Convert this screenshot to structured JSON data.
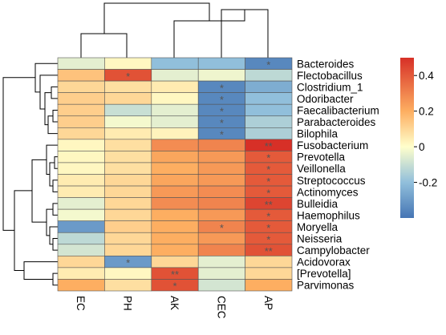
{
  "chart_data": {
    "type": "heatmap",
    "title": "",
    "columns": [
      "EC",
      "PH",
      "AK",
      "CEC",
      "AP"
    ],
    "rows": [
      "Bacteroides",
      "Flectobacillus",
      "Clostridium_1",
      "Odoribacter",
      "Faecalibacterium",
      "Parabacteroides",
      "Bilophila",
      "Fusobacterium",
      "Prevotella",
      "Veillonella",
      "Streptococcus",
      "Actinomyces",
      "Bulleidia",
      "Haemophilus",
      "Moryella",
      "Neisseria",
      "Campylobacter",
      "Acidovorax",
      "[Prevotella]",
      "Parvimonas"
    ],
    "values": [
      [
        -0.05,
        0.02,
        -0.2,
        -0.2,
        -0.35
      ],
      [
        0.15,
        0.42,
        -0.05,
        -0.03,
        -0.12
      ],
      [
        0.1,
        0.08,
        0.05,
        -0.35,
        -0.25
      ],
      [
        0.12,
        0.1,
        0.02,
        -0.35,
        -0.2
      ],
      [
        0.12,
        -0.1,
        -0.05,
        -0.35,
        -0.2
      ],
      [
        0.12,
        -0.02,
        -0.05,
        -0.35,
        -0.15
      ],
      [
        0.1,
        0.05,
        0.03,
        -0.35,
        -0.15
      ],
      [
        0.02,
        0.08,
        0.28,
        0.3,
        0.52
      ],
      [
        0.02,
        0.08,
        0.22,
        0.25,
        0.4
      ],
      [
        0.02,
        0.08,
        0.2,
        0.25,
        0.4
      ],
      [
        0.05,
        0.1,
        0.22,
        0.25,
        0.4
      ],
      [
        0.05,
        0.1,
        0.25,
        0.28,
        0.4
      ],
      [
        -0.05,
        0.1,
        0.28,
        0.3,
        0.45
      ],
      [
        -0.02,
        0.1,
        0.2,
        0.25,
        0.4
      ],
      [
        -0.3,
        0.12,
        0.2,
        0.3,
        0.4
      ],
      [
        -0.12,
        0.1,
        0.2,
        0.25,
        0.4
      ],
      [
        -0.08,
        0.1,
        0.2,
        0.3,
        0.42
      ],
      [
        0.1,
        -0.3,
        0.1,
        -0.05,
        0.1
      ],
      [
        0.05,
        0.02,
        0.42,
        -0.05,
        0.1
      ],
      [
        0.2,
        0.08,
        0.42,
        -0.08,
        0.2
      ]
    ],
    "significance": [
      [
        "",
        "",
        "",
        "",
        "*"
      ],
      [
        "",
        "*",
        "",
        "",
        ""
      ],
      [
        "",
        "",
        "",
        "*",
        ""
      ],
      [
        "",
        "",
        "",
        "*",
        ""
      ],
      [
        "",
        "",
        "",
        "*",
        ""
      ],
      [
        "",
        "",
        "",
        "*",
        ""
      ],
      [
        "",
        "",
        "",
        "*",
        ""
      ],
      [
        "",
        "",
        "",
        "",
        "**"
      ],
      [
        "",
        "",
        "",
        "",
        "*"
      ],
      [
        "",
        "",
        "",
        "",
        "*"
      ],
      [
        "",
        "",
        "",
        "",
        "*"
      ],
      [
        "",
        "",
        "",
        "",
        "*"
      ],
      [
        "",
        "",
        "",
        "",
        "**"
      ],
      [
        "",
        "",
        "",
        "",
        "*"
      ],
      [
        "",
        "",
        "",
        "*",
        "*"
      ],
      [
        "",
        "",
        "",
        "",
        "*"
      ],
      [
        "",
        "",
        "",
        "",
        "**"
      ],
      [
        "",
        "*",
        "",
        "",
        ""
      ],
      [
        "",
        "",
        "**",
        "",
        ""
      ],
      [
        "",
        "",
        "*",
        "",
        ""
      ]
    ],
    "color_scale": {
      "min": -0.4,
      "max": 0.5,
      "stops": [
        {
          "value": -0.4,
          "color": "#4575b4"
        },
        {
          "value": -0.2,
          "color": "#91bfdb"
        },
        {
          "value": 0.0,
          "color": "#ffffcc"
        },
        {
          "value": 0.2,
          "color": "#fdae61"
        },
        {
          "value": 0.5,
          "color": "#d73027"
        }
      ],
      "ticks": [
        0.4,
        0.2,
        0,
        -0.2
      ],
      "tick_labels": [
        "0.4",
        "0.2",
        "0",
        "-0.2"
      ]
    },
    "column_dendrogram": "top",
    "row_dendrogram": "left",
    "legend_position": "right"
  }
}
